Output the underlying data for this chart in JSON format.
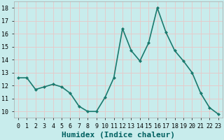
{
  "x": [
    0,
    1,
    2,
    3,
    4,
    5,
    6,
    7,
    8,
    9,
    10,
    11,
    12,
    13,
    14,
    15,
    16,
    17,
    18,
    19,
    20,
    21,
    22,
    23
  ],
  "y": [
    12.6,
    12.6,
    11.7,
    11.9,
    12.1,
    11.9,
    11.4,
    10.4,
    10.0,
    10.0,
    11.1,
    12.6,
    16.4,
    14.7,
    13.9,
    15.3,
    18.0,
    16.1,
    14.7,
    13.9,
    13.0,
    11.4,
    10.3,
    9.8
  ],
  "line_color": "#1a7a6e",
  "marker": "D",
  "marker_size": 2,
  "line_width": 1.2,
  "bg_color": "#c8ecec",
  "grid_color": "#e8c8c8",
  "xlabel": "Humidex (Indice chaleur)",
  "xlabel_fontsize": 8,
  "xlabel_color": "#006060",
  "xlabel_weight": "bold",
  "yticks": [
    10,
    11,
    12,
    13,
    14,
    15,
    16,
    17,
    18
  ],
  "ylim": [
    9.5,
    18.5
  ],
  "xlim": [
    -0.5,
    23.5
  ],
  "xtick_labels": [
    "0",
    "1",
    "2",
    "3",
    "4",
    "5",
    "6",
    "7",
    "8",
    "9",
    "10",
    "11",
    "12",
    "13",
    "14",
    "15",
    "16",
    "17",
    "18",
    "19",
    "20",
    "21",
    "22",
    "23"
  ],
  "tick_fontsize": 6,
  "tick_color": "#000000",
  "spine_color": "#aaaaaa"
}
